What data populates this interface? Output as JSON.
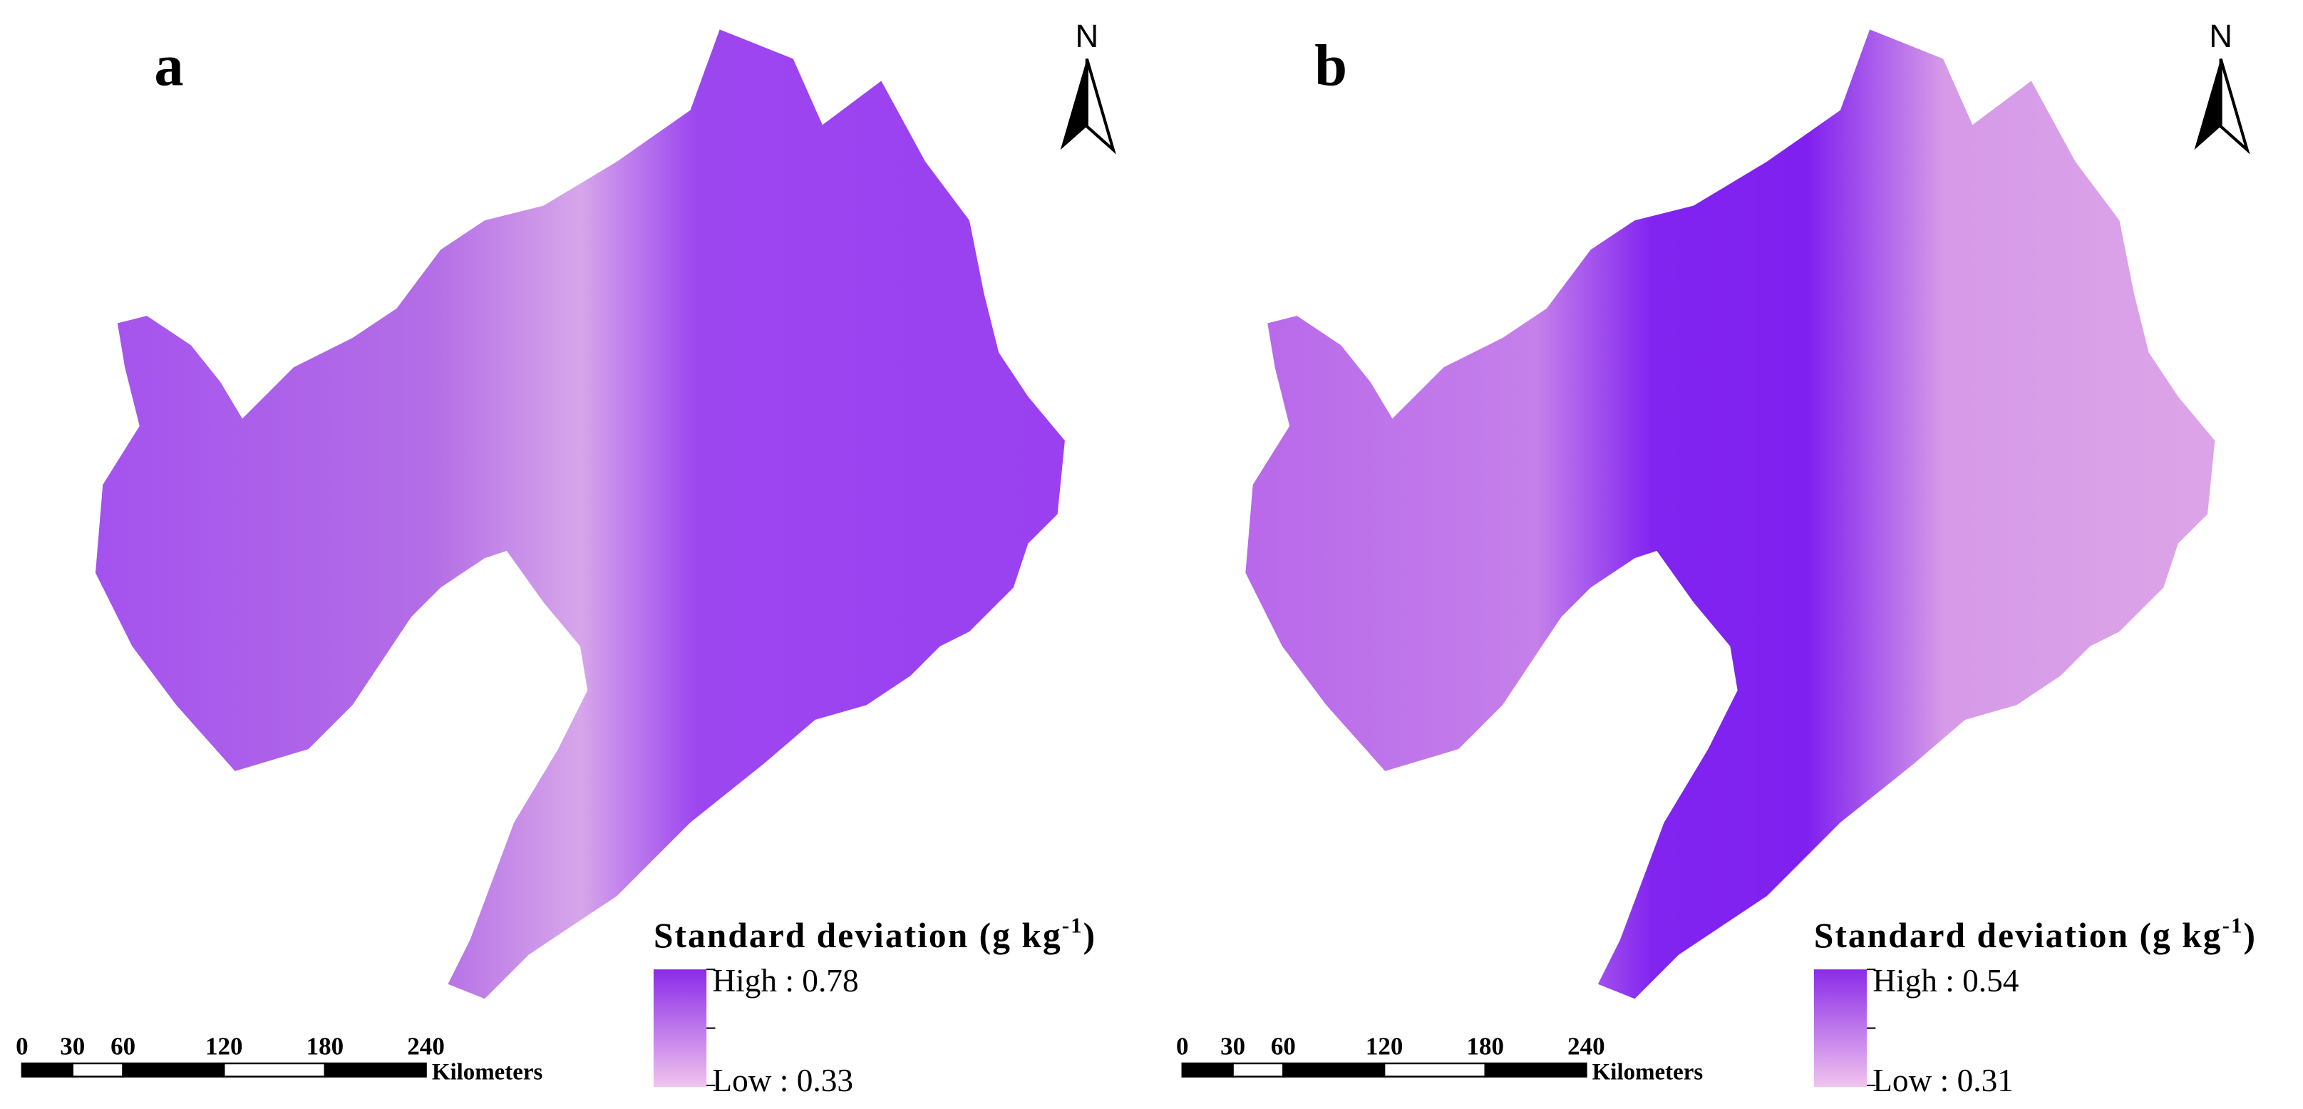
{
  "panels": [
    {
      "label": "a",
      "north": "N",
      "legend": {
        "title": "Standard deviation (g kg",
        "title_sup": "-1",
        "title_end": ")",
        "high": "High : 0.78",
        "low": "Low : 0.33"
      },
      "scalebar": {
        "ticks": [
          0,
          30,
          60,
          120,
          180,
          240
        ],
        "unit": "Kilometers"
      }
    },
    {
      "label": "b",
      "north": "N",
      "legend": {
        "title": "Standard deviation (g kg",
        "title_sup": "-1",
        "title_end": ")",
        "high": "High : 0.54",
        "low": "Low : 0.31"
      },
      "scalebar": {
        "ticks": [
          0,
          30,
          60,
          120,
          180,
          240
        ],
        "unit": "Kilometers"
      }
    }
  ]
}
